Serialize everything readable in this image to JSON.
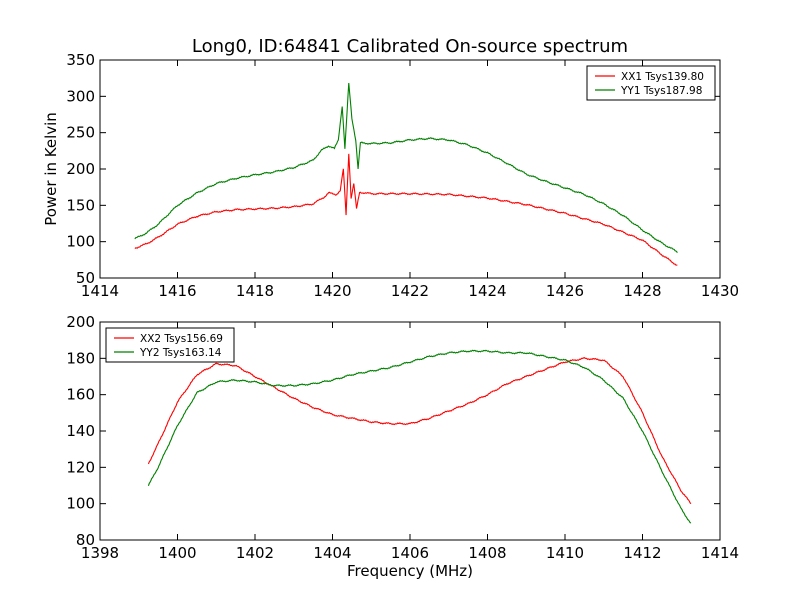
{
  "title": "Long0, ID:64841 Calibrated On-source spectrum",
  "chart_data": [
    {
      "type": "line",
      "xlabel": "",
      "ylabel": "Power in Kelvin",
      "xlim": [
        1414,
        1430
      ],
      "ylim": [
        50,
        350
      ],
      "xticks": [
        "1414",
        "1416",
        "1418",
        "1420",
        "1422",
        "1424",
        "1426",
        "1428",
        "1430"
      ],
      "yticks": [
        "50",
        "100",
        "150",
        "200",
        "250",
        "300",
        "350"
      ],
      "legend_position": "top-right",
      "grid": false,
      "series": [
        {
          "name": "XX1 Tsys139.80",
          "color": "#ff0000",
          "points": [
            [
              1414.9,
              91
            ],
            [
              1415.2,
              97
            ],
            [
              1415.5,
              106
            ],
            [
              1416.0,
              124
            ],
            [
              1416.5,
              135
            ],
            [
              1417.0,
              141
            ],
            [
              1417.5,
              144
            ],
            [
              1418.0,
              145
            ],
            [
              1418.5,
              146
            ],
            [
              1419.0,
              148
            ],
            [
              1419.5,
              152
            ],
            [
              1419.8,
              162
            ],
            [
              1419.9,
              167
            ],
            [
              1420.1,
              165
            ],
            [
              1420.2,
              170
            ],
            [
              1420.28,
              200
            ],
            [
              1420.35,
              137
            ],
            [
              1420.42,
              222
            ],
            [
              1420.48,
              160
            ],
            [
              1420.55,
              180
            ],
            [
              1420.62,
              145
            ],
            [
              1420.7,
              168
            ],
            [
              1421.0,
              166
            ],
            [
              1421.5,
              166
            ],
            [
              1422.0,
              166
            ],
            [
              1423.0,
              165
            ],
            [
              1424.0,
              160
            ],
            [
              1425.0,
              151
            ],
            [
              1426.0,
              139
            ],
            [
              1427.0,
              124
            ],
            [
              1428.0,
              102
            ],
            [
              1428.5,
              82
            ],
            [
              1428.9,
              67
            ]
          ]
        },
        {
          "name": "YY1 Tsys187.98",
          "color": "#008000",
          "points": [
            [
              1414.9,
              104
            ],
            [
              1415.2,
              112
            ],
            [
              1415.5,
              124
            ],
            [
              1416.0,
              150
            ],
            [
              1416.5,
              167
            ],
            [
              1417.0,
              180
            ],
            [
              1417.5,
              187
            ],
            [
              1418.0,
              192
            ],
            [
              1418.5,
              196
            ],
            [
              1419.0,
              202
            ],
            [
              1419.5,
              212
            ],
            [
              1419.7,
              225
            ],
            [
              1419.9,
              232
            ],
            [
              1420.05,
              228
            ],
            [
              1420.15,
              240
            ],
            [
              1420.25,
              287
            ],
            [
              1420.32,
              228
            ],
            [
              1420.42,
              318
            ],
            [
              1420.5,
              270
            ],
            [
              1420.6,
              240
            ],
            [
              1420.66,
              200
            ],
            [
              1420.72,
              236
            ],
            [
              1421.0,
              235
            ],
            [
              1421.5,
              236
            ],
            [
              1422.0,
              240
            ],
            [
              1422.5,
              242
            ],
            [
              1423.0,
              240
            ],
            [
              1423.5,
              233
            ],
            [
              1424.0,
              222
            ],
            [
              1424.5,
              208
            ],
            [
              1425.0,
              193
            ],
            [
              1425.5,
              183
            ],
            [
              1426.0,
              174
            ],
            [
              1426.5,
              165
            ],
            [
              1427.0,
              152
            ],
            [
              1427.5,
              136
            ],
            [
              1428.0,
              116
            ],
            [
              1428.5,
              98
            ],
            [
              1428.9,
              86
            ]
          ]
        }
      ]
    },
    {
      "type": "line",
      "xlabel": "Frequency (MHz)",
      "ylabel": "",
      "xlim": [
        1398,
        1414
      ],
      "ylim": [
        80,
        200
      ],
      "xticks": [
        "1398",
        "1400",
        "1402",
        "1404",
        "1406",
        "1408",
        "1410",
        "1412",
        "1414"
      ],
      "yticks": [
        "80",
        "100",
        "120",
        "140",
        "160",
        "180",
        "200"
      ],
      "legend_position": "top-left",
      "grid": false,
      "series": [
        {
          "name": "XX2 Tsys156.69",
          "color": "#ff0000",
          "points": [
            [
              1399.25,
              122
            ],
            [
              1399.5,
              133
            ],
            [
              1400.0,
              156
            ],
            [
              1400.5,
              171
            ],
            [
              1401.0,
              177
            ],
            [
              1401.5,
              176
            ],
            [
              1402.0,
              170
            ],
            [
              1402.5,
              164
            ],
            [
              1403.0,
              158
            ],
            [
              1403.5,
              153
            ],
            [
              1404.0,
              149
            ],
            [
              1404.5,
              147
            ],
            [
              1405.0,
              145
            ],
            [
              1405.5,
              144
            ],
            [
              1406.0,
              144
            ],
            [
              1406.5,
              147
            ],
            [
              1407.0,
              151
            ],
            [
              1407.5,
              155
            ],
            [
              1408.0,
              160
            ],
            [
              1408.5,
              166
            ],
            [
              1409.0,
              170
            ],
            [
              1409.5,
              174
            ],
            [
              1410.0,
              178
            ],
            [
              1410.5,
              180
            ],
            [
              1411.0,
              179
            ],
            [
              1411.5,
              170
            ],
            [
              1412.0,
              150
            ],
            [
              1412.5,
              126
            ],
            [
              1413.0,
              107
            ],
            [
              1413.25,
              100
            ]
          ]
        },
        {
          "name": "YY2 Tsys163.14",
          "color": "#008000",
          "points": [
            [
              1399.25,
              110
            ],
            [
              1399.5,
              120
            ],
            [
              1400.0,
              143
            ],
            [
              1400.5,
              161
            ],
            [
              1401.0,
              167
            ],
            [
              1401.5,
              168
            ],
            [
              1402.0,
              167
            ],
            [
              1402.5,
              165
            ],
            [
              1403.0,
              165
            ],
            [
              1403.5,
              166
            ],
            [
              1404.0,
              168
            ],
            [
              1404.5,
              171
            ],
            [
              1405.0,
              173
            ],
            [
              1405.5,
              175
            ],
            [
              1406.0,
              178
            ],
            [
              1406.5,
              181
            ],
            [
              1407.0,
              183
            ],
            [
              1407.5,
              184
            ],
            [
              1408.0,
              184
            ],
            [
              1408.5,
              183
            ],
            [
              1409.0,
              183
            ],
            [
              1409.5,
              181
            ],
            [
              1410.0,
              179
            ],
            [
              1410.5,
              175
            ],
            [
              1411.0,
              168
            ],
            [
              1411.5,
              158
            ],
            [
              1412.0,
              140
            ],
            [
              1412.5,
              118
            ],
            [
              1413.0,
              97
            ],
            [
              1413.25,
              89
            ]
          ]
        }
      ]
    }
  ]
}
